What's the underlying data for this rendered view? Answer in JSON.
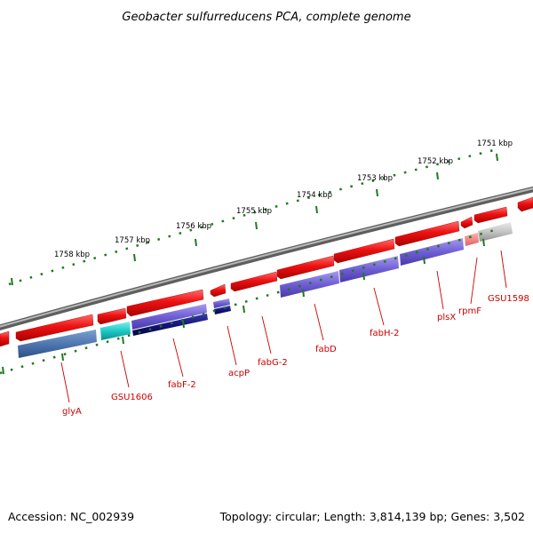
{
  "title": "Geobacter sulfurreducens PCA, complete genome",
  "accession": "Accession: NC_002939",
  "summary": "Topology: circular; Length: 3,814,139 bp; Genes: 3,502",
  "colors": {
    "backbone": "#7a7a7a",
    "forward_gene": "#ee1111",
    "ticks": "#1e7a1e",
    "gene_label": "#cc0000"
  },
  "scale_labels": [
    {
      "id": "1751",
      "text": "1751 kbp"
    },
    {
      "id": "1752",
      "text": "1752 kbp"
    },
    {
      "id": "1753",
      "text": "1753 kbp"
    },
    {
      "id": "1754",
      "text": "1754 kbp"
    },
    {
      "id": "1755",
      "text": "1755 kbp"
    },
    {
      "id": "1756",
      "text": "1756 kbp"
    },
    {
      "id": "1757",
      "text": "1757 kbp"
    },
    {
      "id": "1758",
      "text": "1758 kbp"
    }
  ],
  "gene_labels": [
    {
      "id": "glyA",
      "text": "glyA"
    },
    {
      "id": "gsu1606",
      "text": "GSU1606"
    },
    {
      "id": "fabF2",
      "text": "fabF-2"
    },
    {
      "id": "acpP",
      "text": "acpP"
    },
    {
      "id": "fabG2",
      "text": "fabG-2"
    },
    {
      "id": "fabD",
      "text": "fabD"
    },
    {
      "id": "fabH2",
      "text": "fabH-2"
    },
    {
      "id": "plsX",
      "text": "plsX"
    },
    {
      "id": "rpmF",
      "text": "rpmF"
    },
    {
      "id": "gsu1598",
      "text": "GSU1598"
    }
  ]
}
